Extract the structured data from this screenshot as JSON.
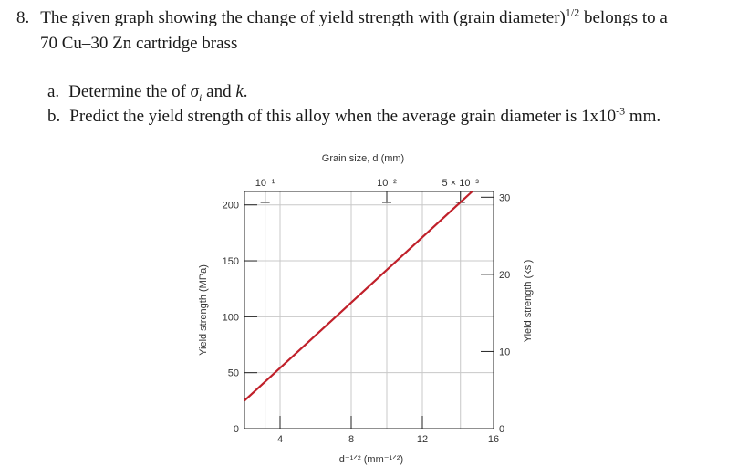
{
  "problem": {
    "number": "8.",
    "intro_before": "The given graph showing the change of yield strength with (grain diameter)",
    "intro_exp": "1/2",
    "intro_after": " belongs to a",
    "intro_line2": "70 Cu–30 Zn cartridge brass",
    "part_a_label": "a.",
    "part_a_before": "Determine the of ",
    "part_a_sigma": "σ",
    "part_a_sub": "i",
    "part_a_mid": " and ",
    "part_a_k": "k",
    "part_a_end": ".",
    "part_b_label": "b.",
    "part_b_before": "Predict the yield strength of this alloy when the average grain diameter is 1x10",
    "part_b_exp": "-3",
    "part_b_after": " mm."
  },
  "chart_data": {
    "type": "line",
    "top_axis_title": "Grain size, d (mm)",
    "top_ticks": [
      {
        "label": "10⁻¹",
        "x": 3.16
      },
      {
        "label": "10⁻²",
        "x": 10.0
      },
      {
        "label": "5 × 10⁻³",
        "x": 14.14
      }
    ],
    "xlabel": "d⁻¹ᐟ² (mm⁻¹ᐟ²)",
    "xticks": [
      4,
      8,
      12,
      16
    ],
    "xlim": [
      2,
      16
    ],
    "ylabel_left": "Yield strength (MPa)",
    "yticks_left": [
      0,
      50,
      100,
      150,
      200
    ],
    "ylim_left": [
      0,
      212
    ],
    "ylabel_right": "Yield strength (ksi)",
    "yticks_right": [
      0,
      10,
      20,
      30
    ],
    "grid": true,
    "series": [
      {
        "x": [
          2.0,
          14.8
        ],
        "y": [
          25,
          212
        ],
        "color": "#c0202a"
      }
    ]
  }
}
